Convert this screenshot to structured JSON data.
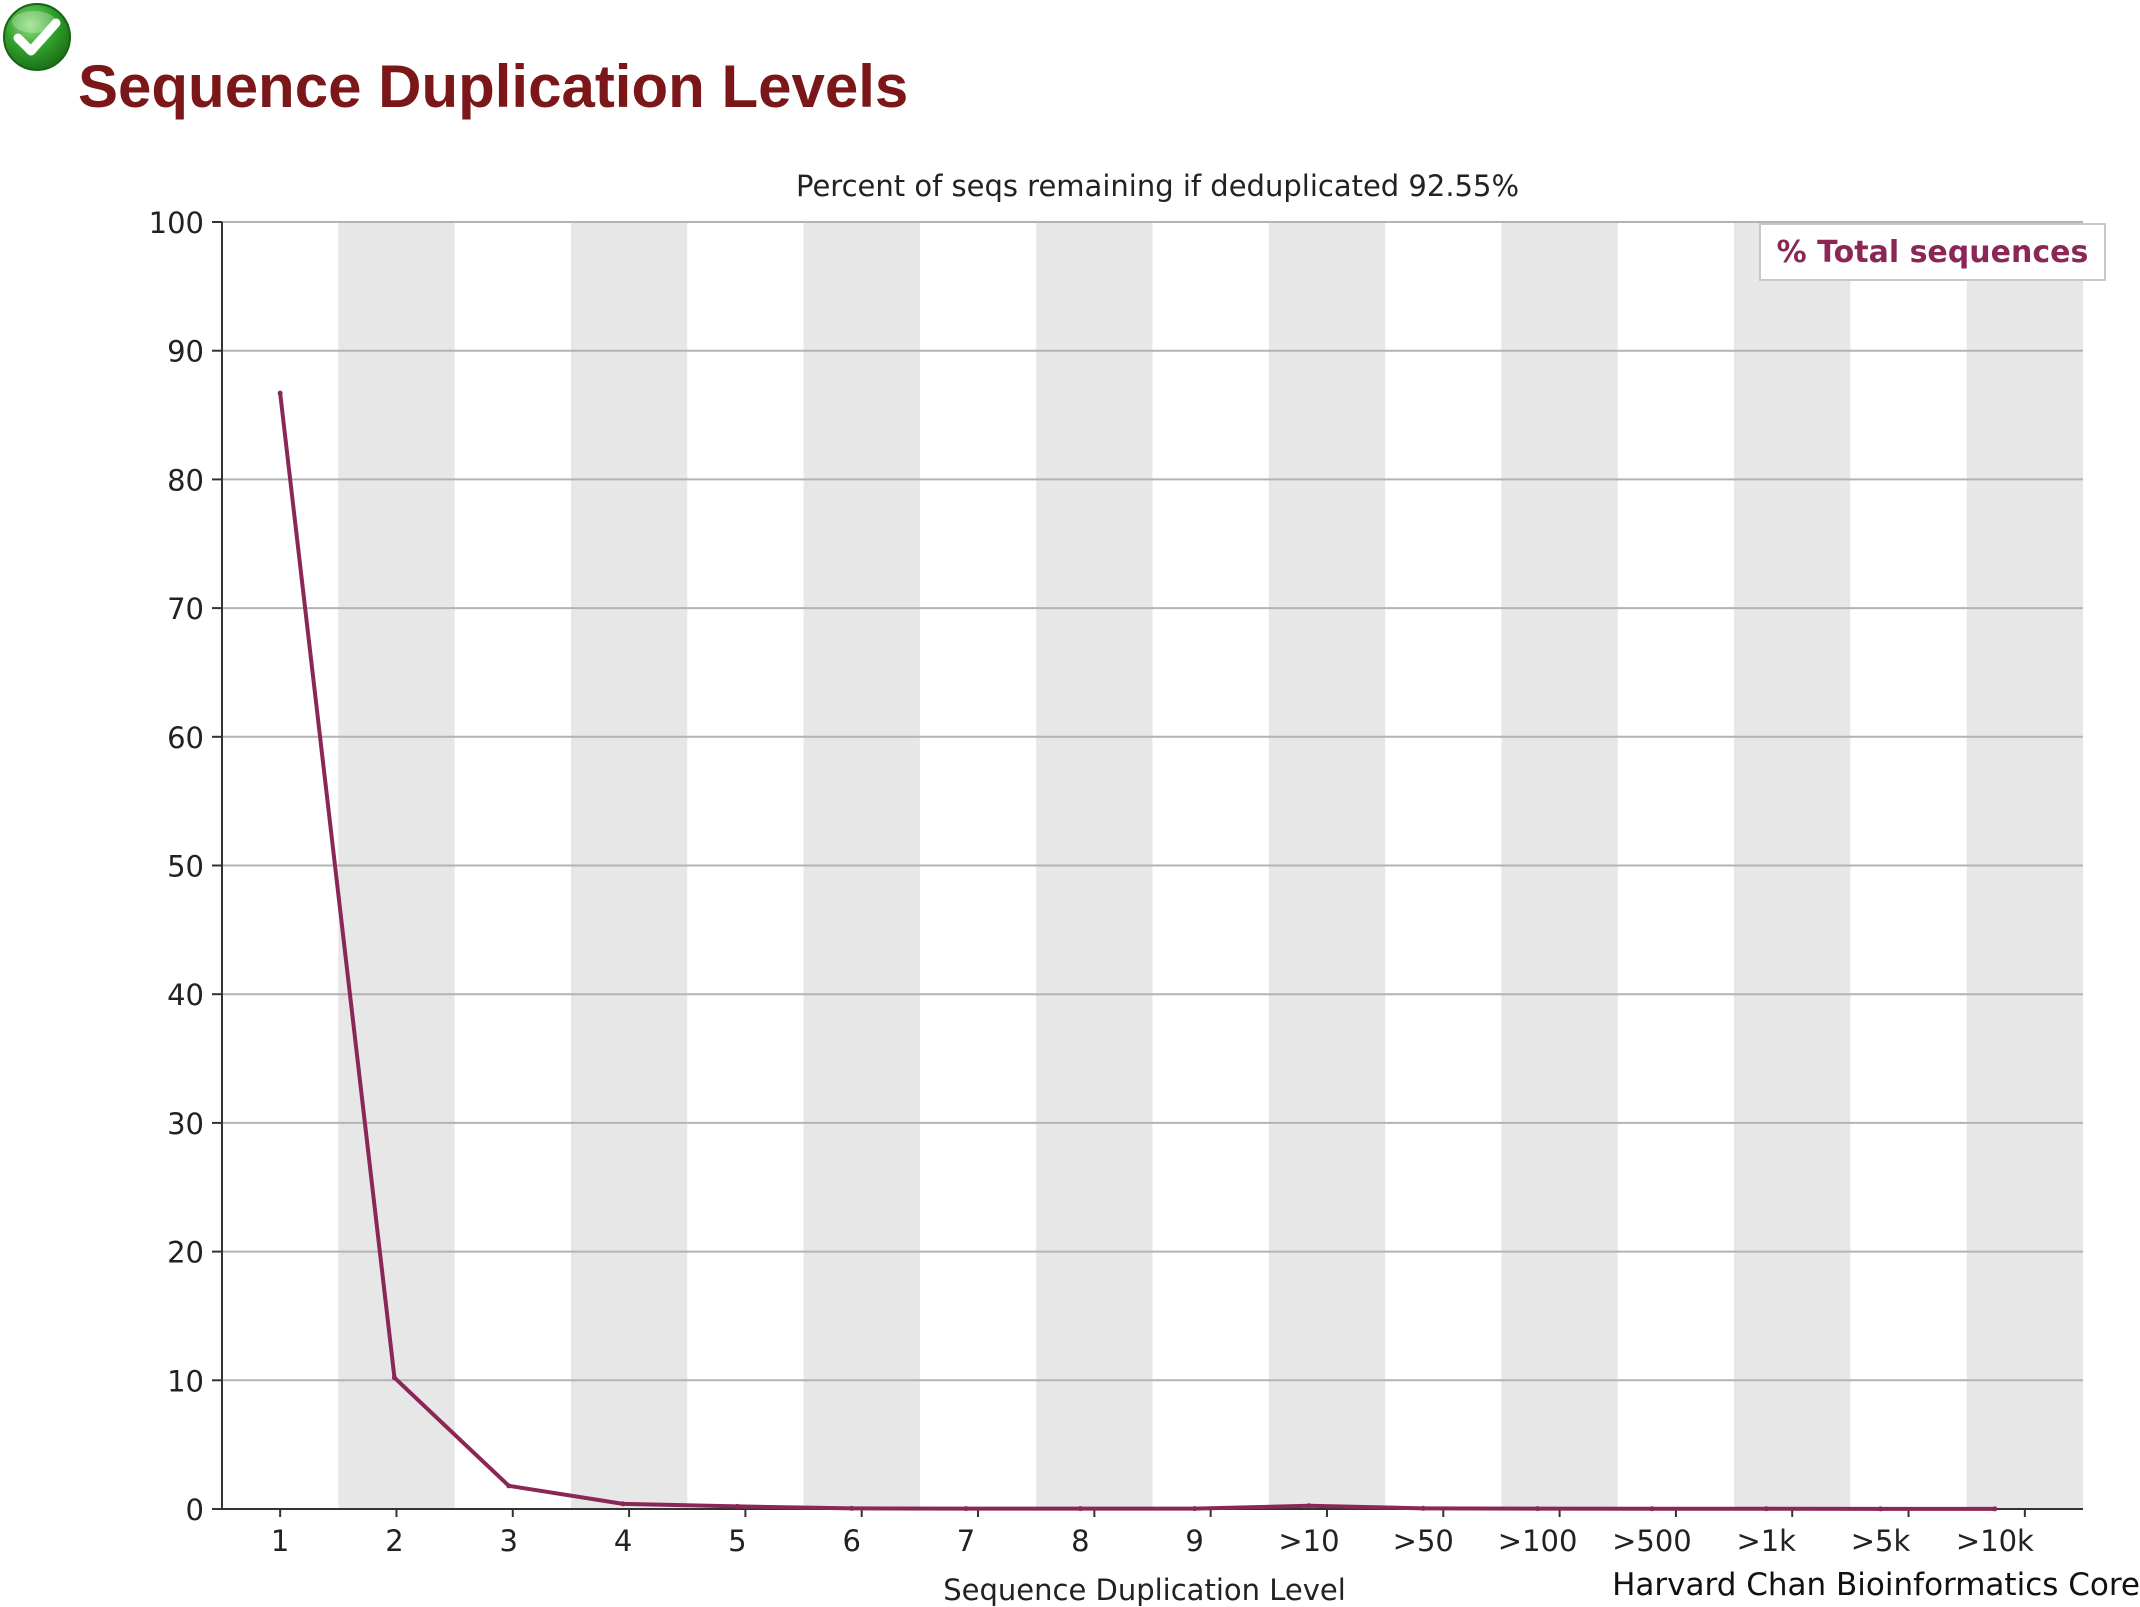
{
  "header": {
    "title": "Sequence Duplication Levels",
    "status_icon": "check-circle-icon",
    "status_color": "#2e9e2c"
  },
  "credit": "Harvard Chan Bioinformatics Core",
  "chart_data": {
    "type": "line",
    "title": "Percent of seqs remaining if deduplicated 92.55%",
    "xlabel": "Sequence Duplication Level",
    "ylabel": "",
    "ylim": [
      0,
      100
    ],
    "yticks": [
      0,
      10,
      20,
      30,
      40,
      50,
      60,
      70,
      80,
      90,
      100
    ],
    "categories": [
      "1",
      "2",
      "3",
      "4",
      "5",
      "6",
      "7",
      "8",
      "9",
      ">10",
      ">50",
      ">100",
      ">500",
      ">1k",
      ">5k",
      ">10k"
    ],
    "series": [
      {
        "name": "% Total sequences",
        "color": "#8a2756",
        "values": [
          86.7,
          10.2,
          1.8,
          0.4,
          0.2,
          0.05,
          0.03,
          0.03,
          0.03,
          0.25,
          0.05,
          0.03,
          0.02,
          0.02,
          0.01,
          0.01
        ]
      }
    ],
    "grid": true,
    "alternating_bands": true,
    "band_color": "#e6e7e6",
    "legend_position": "top-right"
  }
}
